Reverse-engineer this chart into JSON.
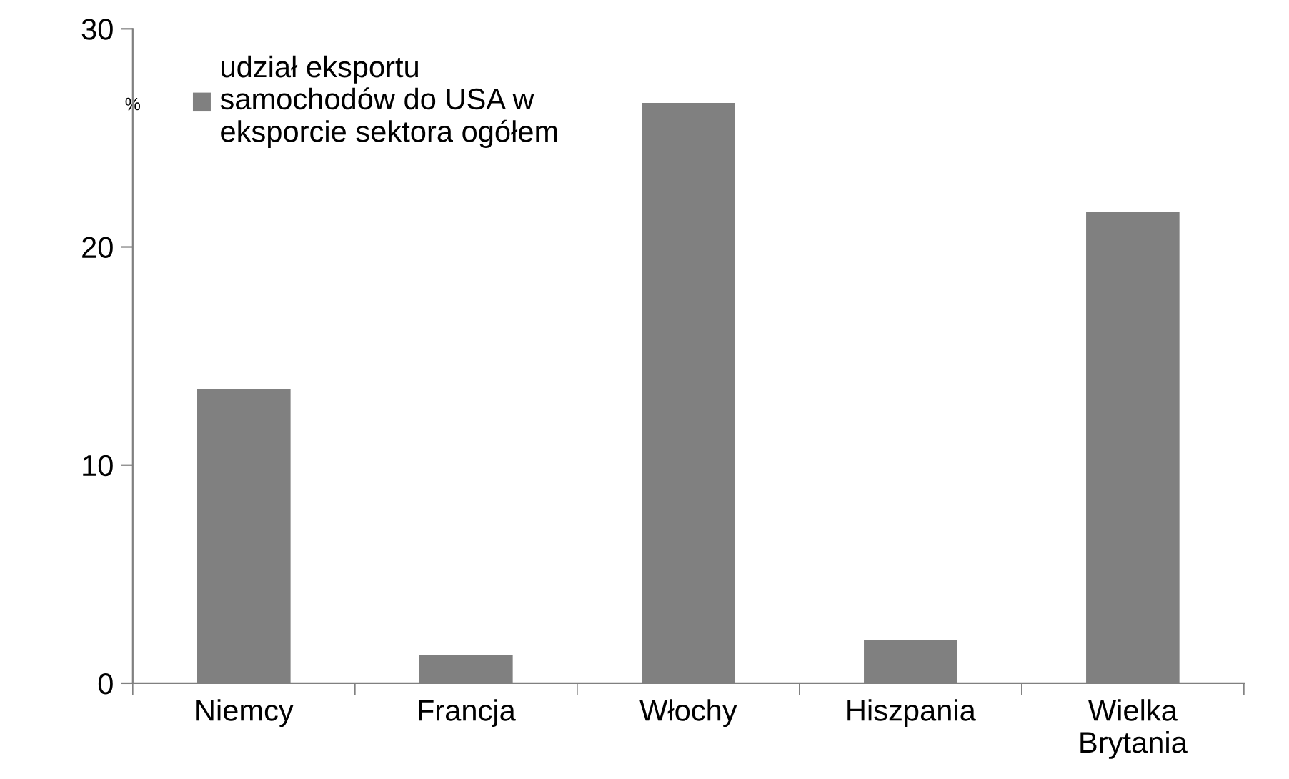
{
  "chart_data": {
    "type": "bar",
    "ylabel": "%",
    "categories": [
      "Niemcy",
      "Francja",
      "Włochy",
      "Hiszpania",
      "Wielka\nBrytania"
    ],
    "series": [
      {
        "name": "udział eksportu\nsamochodów do USA w\neksporcie sektora ogółem",
        "color": "#808080",
        "values": [
          13.5,
          1.3,
          26.6,
          2.0,
          21.6
        ]
      }
    ],
    "ylim": [
      0,
      30
    ],
    "yticks": [
      0,
      10,
      20,
      30
    ],
    "grid": false,
    "legend": "top left"
  }
}
